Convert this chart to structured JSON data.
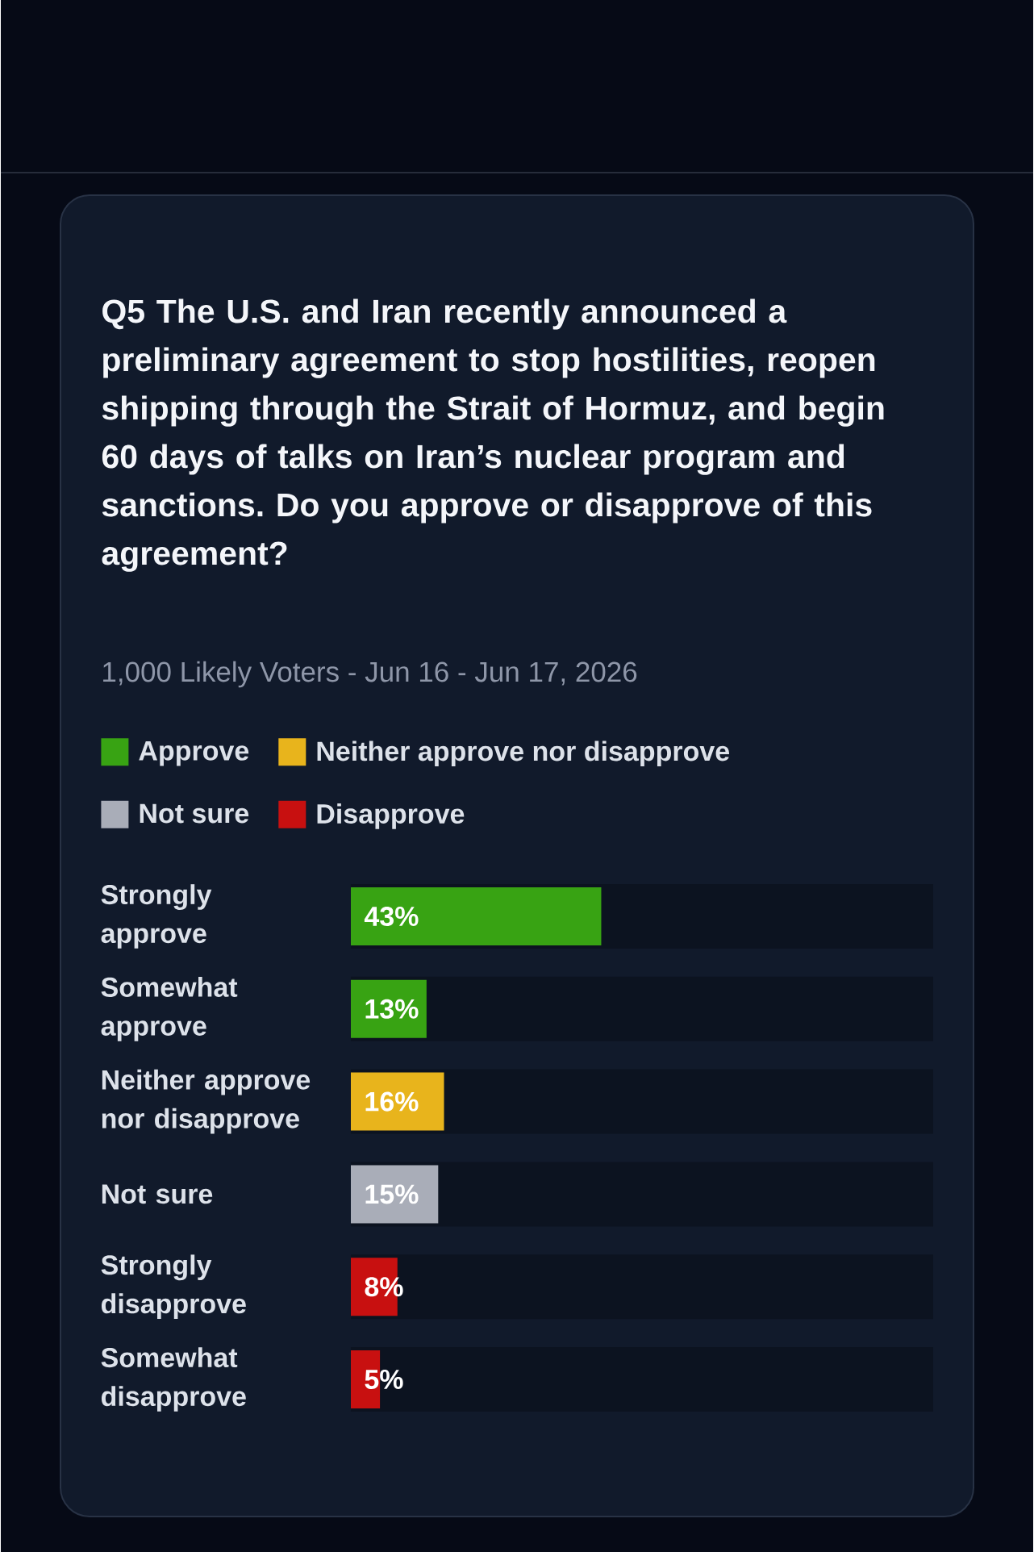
{
  "chart_data": {
    "type": "bar",
    "orientation": "horizontal",
    "title": "Q5 The U.S. and Iran recently announced a preliminary agreement to stop hostilities, reopen shipping through the Strait of Hormuz, and begin 60 days of talks on Iran’s nuclear program and sanctions. Do you approve or disapprove of this agreement?",
    "subtitle": "1,000 Likely Voters - Jun 16 - Jun 17, 2026",
    "categories": [
      "Strongly approve",
      "Somewhat approve",
      "Neither approve nor disapprove",
      "Not sure",
      "Strongly disapprove",
      "Somewhat disapprove"
    ],
    "series": [
      {
        "name": "Approve",
        "color": "#38a313",
        "values": [
          43,
          13,
          null,
          null,
          null,
          null
        ],
        "value_labels": [
          "43%",
          "13%",
          null,
          null,
          null,
          null
        ]
      },
      {
        "name": "Neither approve nor disapprove",
        "color": "#e8b41c",
        "values": [
          null,
          null,
          16,
          null,
          null,
          null
        ],
        "value_labels": [
          null,
          null,
          "16%",
          null,
          null,
          null
        ]
      },
      {
        "name": "Not sure",
        "color": "#a9adb8",
        "values": [
          null,
          null,
          null,
          15,
          null,
          null
        ],
        "value_labels": [
          null,
          null,
          null,
          "15%",
          null,
          null
        ]
      },
      {
        "name": "Disapprove",
        "color": "#c81010",
        "values": [
          null,
          null,
          null,
          null,
          8,
          5
        ],
        "value_labels": [
          null,
          null,
          null,
          null,
          "8%",
          "5%"
        ]
      }
    ],
    "xlim": [
      0,
      100
    ],
    "tick_labels": "y",
    "legend": "top"
  }
}
